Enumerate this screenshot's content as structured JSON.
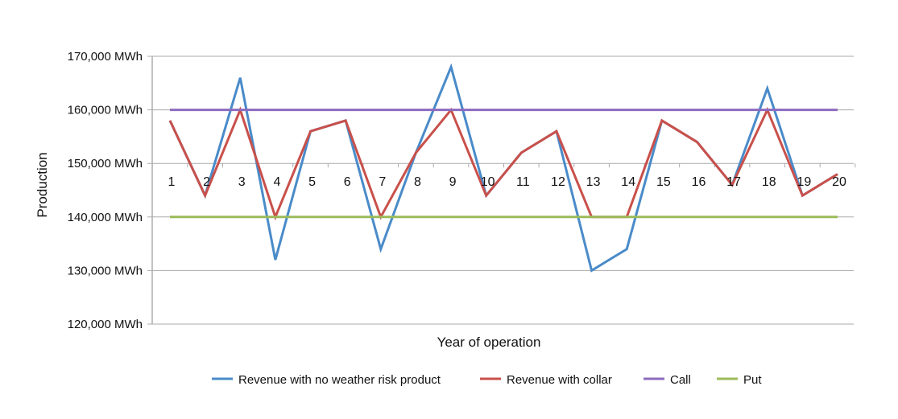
{
  "chart_data": {
    "type": "line",
    "title": "",
    "xlabel": "Year of operation",
    "ylabel": "Production",
    "ylim": [
      120000,
      170000
    ],
    "y_ticks": [
      "120,000 MWh",
      "130,000 MWh",
      "140,000 MWh",
      "150,000 MWh",
      "160,000 MWh",
      "170,000 MWh"
    ],
    "y_tick_values": [
      120000,
      130000,
      140000,
      150000,
      160000,
      170000
    ],
    "x_axis_crosses_at": 150000,
    "grid": true,
    "legend_position": "bottom",
    "categories": [
      "1",
      "2",
      "3",
      "4",
      "5",
      "6",
      "7",
      "8",
      "9",
      "10",
      "11",
      "12",
      "13",
      "14",
      "15",
      "16",
      "17",
      "18",
      "19",
      "20"
    ],
    "series": [
      {
        "name": "Revenue with no weather risk product",
        "color": "#4a8bc9",
        "values": [
          158000,
          144000,
          166000,
          132000,
          156000,
          158000,
          134000,
          152000,
          168000,
          144000,
          152000,
          156000,
          130000,
          134000,
          158000,
          154000,
          146000,
          164000,
          144000,
          148000
        ]
      },
      {
        "name": "Revenue with collar",
        "color": "#c9504b",
        "values": [
          158000,
          144000,
          160000,
          140000,
          156000,
          158000,
          140000,
          152000,
          160000,
          144000,
          152000,
          156000,
          140000,
          140000,
          158000,
          154000,
          146000,
          160000,
          144000,
          148000
        ]
      },
      {
        "name": "Call",
        "color": "#8d6bbf",
        "values": [
          160000,
          160000,
          160000,
          160000,
          160000,
          160000,
          160000,
          160000,
          160000,
          160000,
          160000,
          160000,
          160000,
          160000,
          160000,
          160000,
          160000,
          160000,
          160000,
          160000
        ]
      },
      {
        "name": "Put",
        "color": "#9bbb59",
        "values": [
          140000,
          140000,
          140000,
          140000,
          140000,
          140000,
          140000,
          140000,
          140000,
          140000,
          140000,
          140000,
          140000,
          140000,
          140000,
          140000,
          140000,
          140000,
          140000,
          140000
        ]
      }
    ]
  }
}
